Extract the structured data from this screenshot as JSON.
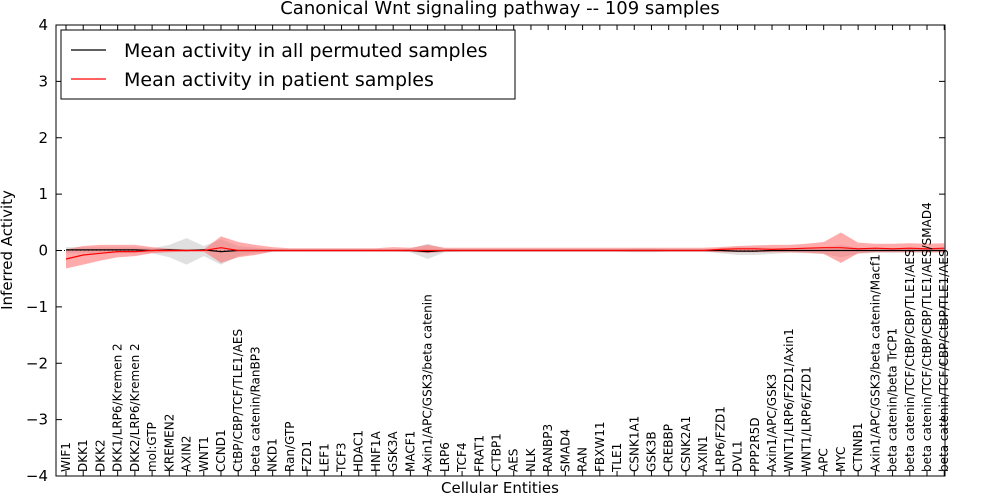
{
  "chart_data": {
    "type": "line",
    "title": "Canonical Wnt signaling pathway -- 109 samples",
    "xlabel": "Cellular Entities",
    "ylabel": "Inferred Activity",
    "ylim": [
      -4,
      4
    ],
    "yticks": [
      "4",
      "3",
      "2",
      "1",
      "0",
      "−1",
      "−2",
      "−3",
      "−4"
    ],
    "ytick_values": [
      4,
      3,
      2,
      1,
      0,
      -1,
      -2,
      -3,
      -4
    ],
    "legend": {
      "position": "top-left",
      "entries": [
        "Mean activity in all permuted samples",
        "Mean activity in patient samples"
      ]
    },
    "colors": {
      "permuted": "#000000",
      "patient": "#ff0000",
      "permuted_band": "#bbbbbb",
      "patient_band": "#ff6666"
    },
    "categories": [
      "WIF1",
      "DKK1",
      "DKK2",
      "DKK1/LRP6/Kremen 2",
      "DKK2/LRP6/Kremen 2",
      "mol:GTP",
      "KREMEN2",
      "AXIN2",
      "WNT1",
      "CCND1",
      "CtBP/CBP/TCF/TLE1/AES",
      "beta catenin/RanBP3",
      "NKD1",
      "Ran/GTP",
      "FZD1",
      "LEF1",
      "TCF3",
      "HDAC1",
      "HNF1A",
      "GSK3A",
      "MACF1",
      "Axin1/APC/GSK3/beta catenin",
      "LRP6",
      "TCF4",
      "FRAT1",
      "CTBP1",
      "AES",
      "NLK",
      "RANBP3",
      "SMAD4",
      "RAN",
      "FBXW11",
      "TLE1",
      "CSNK1A1",
      "GSK3B",
      "CREBBP",
      "CSNK2A1",
      "AXIN1",
      "LRP6/FZD1",
      "DVL1",
      "PPP2R5D",
      "Axin1/APC/GSK3",
      "WNT1/LRP6/FZD1/Axin1",
      "WNT1/LRP6/FZD1",
      "APC",
      "MYC",
      "CTNNB1",
      "Axin1/APC/GSK3/beta catenin/Macf1",
      "beta catenin/beta TrCP1",
      "beta catenin/TCF/CtBP/CBP/TLE1/AES",
      "beta catenin/TCF/CtBP/CBP/TLE1/AES/SMAD4",
      "beta catenin/TCF/CBP/CtBP/TLE1/AES"
    ],
    "series": [
      {
        "name": "Mean activity in all permuted samples",
        "values": [
          0.01,
          0.01,
          0.01,
          0.01,
          0.01,
          0.0,
          0.01,
          0.0,
          0.01,
          -0.02,
          0.0,
          0.0,
          0.0,
          0.0,
          0.0,
          0.0,
          0.0,
          0.0,
          0.0,
          0.0,
          0.0,
          -0.02,
          0.0,
          0.0,
          0.0,
          0.0,
          0.0,
          0.0,
          0.0,
          0.0,
          0.0,
          0.0,
          0.0,
          0.0,
          0.0,
          0.0,
          0.0,
          0.0,
          0.0,
          -0.01,
          -0.01,
          0.0,
          0.0,
          0.0,
          0.0,
          0.0,
          0.0,
          0.0,
          0.0,
          0.0,
          0.0,
          0.0
        ],
        "lower": [
          -0.05,
          -0.05,
          -0.05,
          -0.05,
          -0.05,
          -0.05,
          -0.12,
          -0.25,
          -0.1,
          -0.25,
          -0.1,
          -0.05,
          -0.02,
          -0.01,
          -0.01,
          -0.01,
          -0.01,
          -0.01,
          -0.01,
          -0.01,
          -0.03,
          -0.15,
          -0.03,
          -0.02,
          -0.02,
          -0.02,
          -0.02,
          -0.02,
          -0.02,
          -0.02,
          -0.02,
          -0.02,
          -0.02,
          -0.03,
          -0.03,
          -0.02,
          -0.02,
          -0.02,
          -0.05,
          -0.08,
          -0.08,
          -0.06,
          -0.04,
          -0.05,
          -0.06,
          -0.12,
          -0.06,
          -0.04,
          -0.04,
          -0.04,
          -0.04,
          -0.04
        ],
        "upper": [
          0.06,
          0.06,
          0.06,
          0.06,
          0.06,
          0.04,
          0.1,
          0.22,
          0.08,
          0.2,
          0.08,
          0.05,
          0.02,
          0.01,
          0.01,
          0.01,
          0.01,
          0.01,
          0.01,
          0.01,
          0.03,
          0.12,
          0.03,
          0.02,
          0.02,
          0.02,
          0.02,
          0.02,
          0.02,
          0.02,
          0.02,
          0.02,
          0.02,
          0.03,
          0.03,
          0.02,
          0.02,
          0.02,
          0.04,
          0.06,
          0.06,
          0.05,
          0.04,
          0.04,
          0.06,
          0.1,
          0.05,
          0.04,
          0.04,
          0.04,
          0.04,
          0.04
        ]
      },
      {
        "name": "Mean activity in patient samples",
        "values": [
          -0.15,
          -0.08,
          -0.05,
          -0.02,
          -0.02,
          0.0,
          0.0,
          0.0,
          0.0,
          0.05,
          0.0,
          0.0,
          0.0,
          0.0,
          0.0,
          0.0,
          0.0,
          0.0,
          0.0,
          0.0,
          0.0,
          0.0,
          0.0,
          0.0,
          0.0,
          0.0,
          0.0,
          0.0,
          0.0,
          0.0,
          0.0,
          0.0,
          0.0,
          0.0,
          0.0,
          0.0,
          0.0,
          0.0,
          0.02,
          0.03,
          0.03,
          0.02,
          0.03,
          0.04,
          0.05,
          0.05,
          0.03,
          0.04,
          0.03,
          0.04,
          0.03,
          0.04
        ],
        "lower": [
          -0.32,
          -0.25,
          -0.18,
          -0.12,
          -0.1,
          -0.05,
          -0.03,
          -0.02,
          -0.02,
          -0.22,
          -0.12,
          -0.08,
          -0.02,
          -0.02,
          -0.02,
          -0.02,
          -0.02,
          -0.02,
          -0.02,
          -0.02,
          -0.02,
          -0.05,
          -0.02,
          -0.02,
          -0.02,
          -0.02,
          -0.02,
          -0.02,
          -0.02,
          -0.02,
          -0.02,
          -0.02,
          -0.02,
          -0.02,
          -0.02,
          -0.02,
          -0.02,
          -0.02,
          -0.03,
          -0.03,
          -0.03,
          -0.03,
          -0.03,
          -0.04,
          -0.06,
          -0.22,
          -0.05,
          -0.03,
          -0.03,
          -0.03,
          -0.03,
          -0.03
        ],
        "upper": [
          0.02,
          0.08,
          0.1,
          0.1,
          0.1,
          0.06,
          0.03,
          0.02,
          0.02,
          0.25,
          0.15,
          0.1,
          0.06,
          0.04,
          0.04,
          0.04,
          0.04,
          0.04,
          0.04,
          0.06,
          0.05,
          0.1,
          0.05,
          0.05,
          0.05,
          0.05,
          0.05,
          0.05,
          0.05,
          0.05,
          0.05,
          0.05,
          0.05,
          0.05,
          0.05,
          0.05,
          0.05,
          0.05,
          0.06,
          0.08,
          0.09,
          0.1,
          0.1,
          0.12,
          0.15,
          0.32,
          0.14,
          0.12,
          0.12,
          0.13,
          0.12,
          0.13
        ]
      }
    ]
  }
}
